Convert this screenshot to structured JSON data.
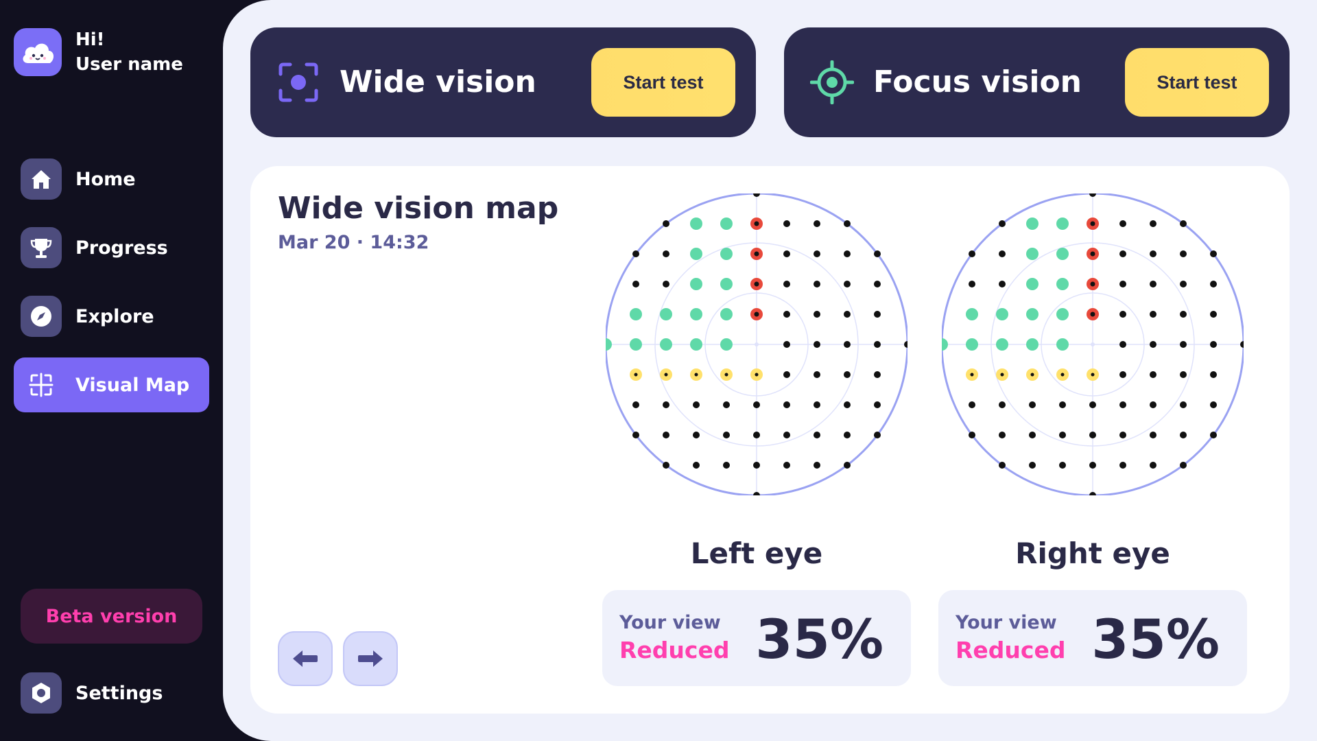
{
  "user": {
    "greeting": "Hi!",
    "name": "User name"
  },
  "sidebar": {
    "items": [
      {
        "label": "Home",
        "icon": "home-icon"
      },
      {
        "label": "Progress",
        "icon": "trophy-icon"
      },
      {
        "label": "Explore",
        "icon": "compass-icon"
      },
      {
        "label": "Visual Map",
        "icon": "visual-map-icon",
        "active": true
      }
    ],
    "beta_label": "Beta version",
    "settings_label": "Settings"
  },
  "tests": {
    "wide": {
      "title": "Wide vision",
      "button": "Start test",
      "icon": "scan-icon"
    },
    "focus": {
      "title": "Focus vision",
      "button": "Start test",
      "icon": "target-icon"
    }
  },
  "map": {
    "title": "Wide vision map",
    "date": "Mar 20 · 14:32",
    "left_eye": {
      "label": "Left eye",
      "view_label": "Your view",
      "status": "Reduced",
      "percent": "35%"
    },
    "right_eye": {
      "label": "Right eye",
      "view_label": "Your view",
      "status": "Reduced",
      "percent": "35%"
    }
  },
  "colors": {
    "sidebar_bg": "#11101f",
    "accent": "#7b68f5",
    "card_dark": "#2c2b4e",
    "button_yellow": "#ffdd6b",
    "reduced_pink": "#ff3fae",
    "dot_normal": "#111111",
    "dot_green": "#5fd9a8",
    "dot_red": "#e8493b",
    "dot_yellow": "#ffe16b",
    "circle_stroke": "#9aa2f2"
  }
}
